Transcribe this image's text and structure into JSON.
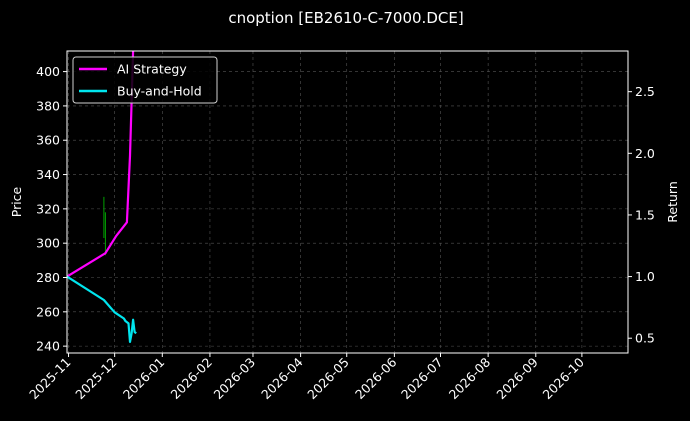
{
  "chart_data": {
    "type": "line",
    "title": "cnoption [EB2610-C-7000.DCE]",
    "ylabel_left": "Price",
    "ylabel_right": "Return",
    "xlabel": "",
    "grid": true,
    "legend_position": "top-left",
    "x_ticks": [
      "2025-11",
      "2025-12",
      "2026-01",
      "2026-02",
      "2026-03",
      "2026-04",
      "2026-05",
      "2026-06",
      "2026-07",
      "2026-08",
      "2026-09",
      "2026-10"
    ],
    "xlim": [
      "2025-10-31",
      "2026-10-31"
    ],
    "ylim_left": [
      236,
      412
    ],
    "yticks_left": [
      240,
      260,
      280,
      300,
      320,
      340,
      360,
      380,
      400
    ],
    "ylim_right": [
      0.38,
      2.83
    ],
    "yticks_right": [
      0.5,
      1.0,
      1.5,
      2.0,
      2.5
    ],
    "colors": {
      "background": "#000000",
      "ai": "#ff00ff",
      "bh": "#00e5ee",
      "candle": "#00a000",
      "grid": "#555555",
      "axis": "#ffffff"
    },
    "candles": [
      {
        "date": "2025-11-24",
        "low": 303,
        "high": 327
      },
      {
        "date": "2025-11-25",
        "low": 293,
        "high": 318
      }
    ],
    "series": [
      {
        "name": "AI Strategy",
        "color": "#ff00ff",
        "points": [
          {
            "date": "2025-10-31",
            "value": 1.0
          },
          {
            "date": "2025-11-25",
            "value": 1.19
          },
          {
            "date": "2025-12-02",
            "value": 1.33
          },
          {
            "date": "2025-12-09",
            "value": 1.44
          },
          {
            "date": "2025-12-11",
            "value": 1.98
          },
          {
            "date": "2025-12-13",
            "value": 2.83
          }
        ]
      },
      {
        "name": "Buy-and-Hold",
        "color": "#00e5ee",
        "points": [
          {
            "date": "2025-10-31",
            "value": 1.0
          },
          {
            "date": "2025-11-24",
            "value": 0.81
          },
          {
            "date": "2025-12-01",
            "value": 0.71
          },
          {
            "date": "2025-12-07",
            "value": 0.66
          },
          {
            "date": "2025-12-08",
            "value": 0.64
          },
          {
            "date": "2025-12-10",
            "value": 0.62
          },
          {
            "date": "2025-12-11",
            "value": 0.47
          },
          {
            "date": "2025-12-12",
            "value": 0.54
          },
          {
            "date": "2025-12-13",
            "value": 0.65
          },
          {
            "date": "2025-12-14",
            "value": 0.55
          },
          {
            "date": "2025-12-15",
            "value": 0.54
          }
        ]
      }
    ]
  }
}
